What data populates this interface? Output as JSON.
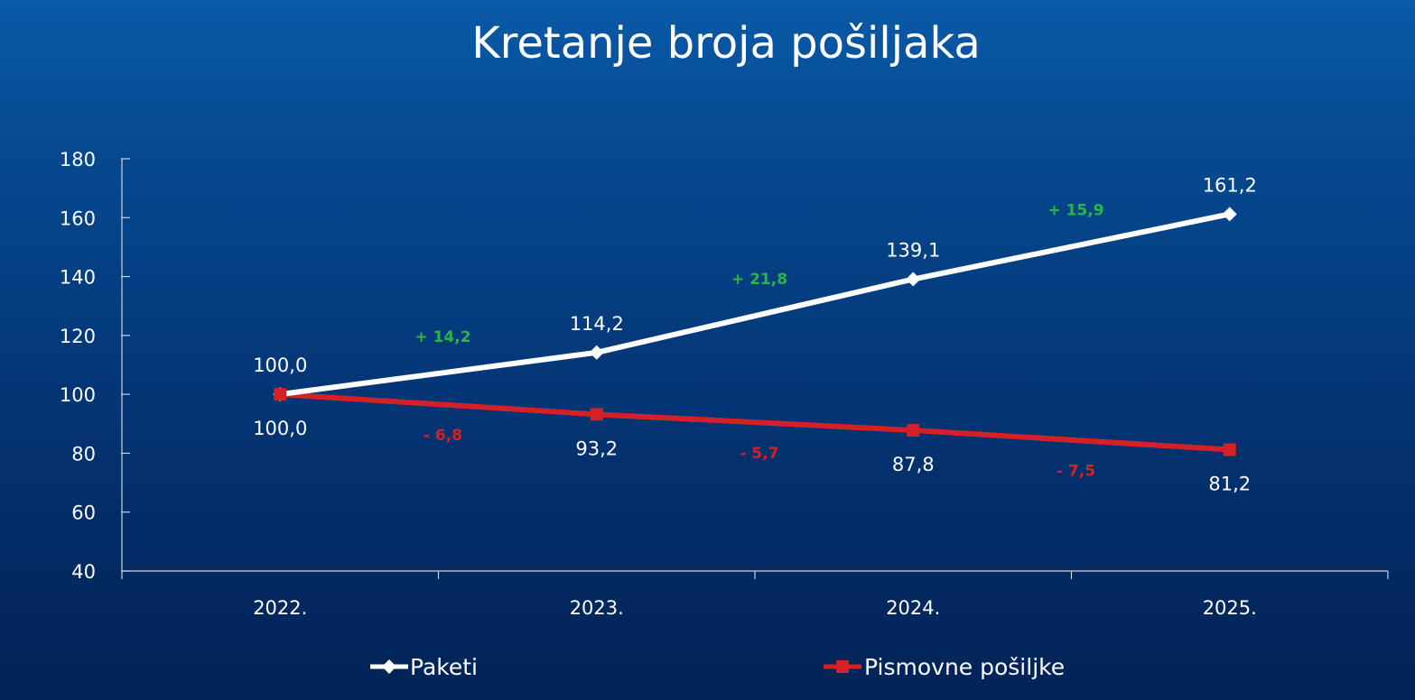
{
  "chart_data": {
    "type": "line",
    "title": "Kretanje broja pošiljaka",
    "categories": [
      "2022.",
      "2023.",
      "2024.",
      "2025."
    ],
    "ylim": [
      40,
      180
    ],
    "yticks": [
      40,
      60,
      80,
      100,
      120,
      140,
      160,
      180
    ],
    "grid": false,
    "legend_position": "bottom",
    "series": [
      {
        "name": "Paketi",
        "values": [
          100.0,
          114.2,
          139.1,
          161.2
        ],
        "value_labels": [
          "100,0",
          "114,2",
          "139,1",
          "161,2"
        ],
        "changes": [
          "+ 14,2",
          "+ 21,8",
          "+ 15,9"
        ],
        "color": "#ffffff",
        "change_color": "#2db34a",
        "marker": "diamond"
      },
      {
        "name": "Pismovne pošiljke",
        "values": [
          100.0,
          93.2,
          87.8,
          81.2
        ],
        "value_labels": [
          "100,0",
          "93,2",
          "87,8",
          "81,2"
        ],
        "changes": [
          "- 6,8",
          "- 5,7",
          "- 7,5"
        ],
        "color": "#d42027",
        "change_color": "#d42027",
        "marker": "square"
      }
    ]
  }
}
